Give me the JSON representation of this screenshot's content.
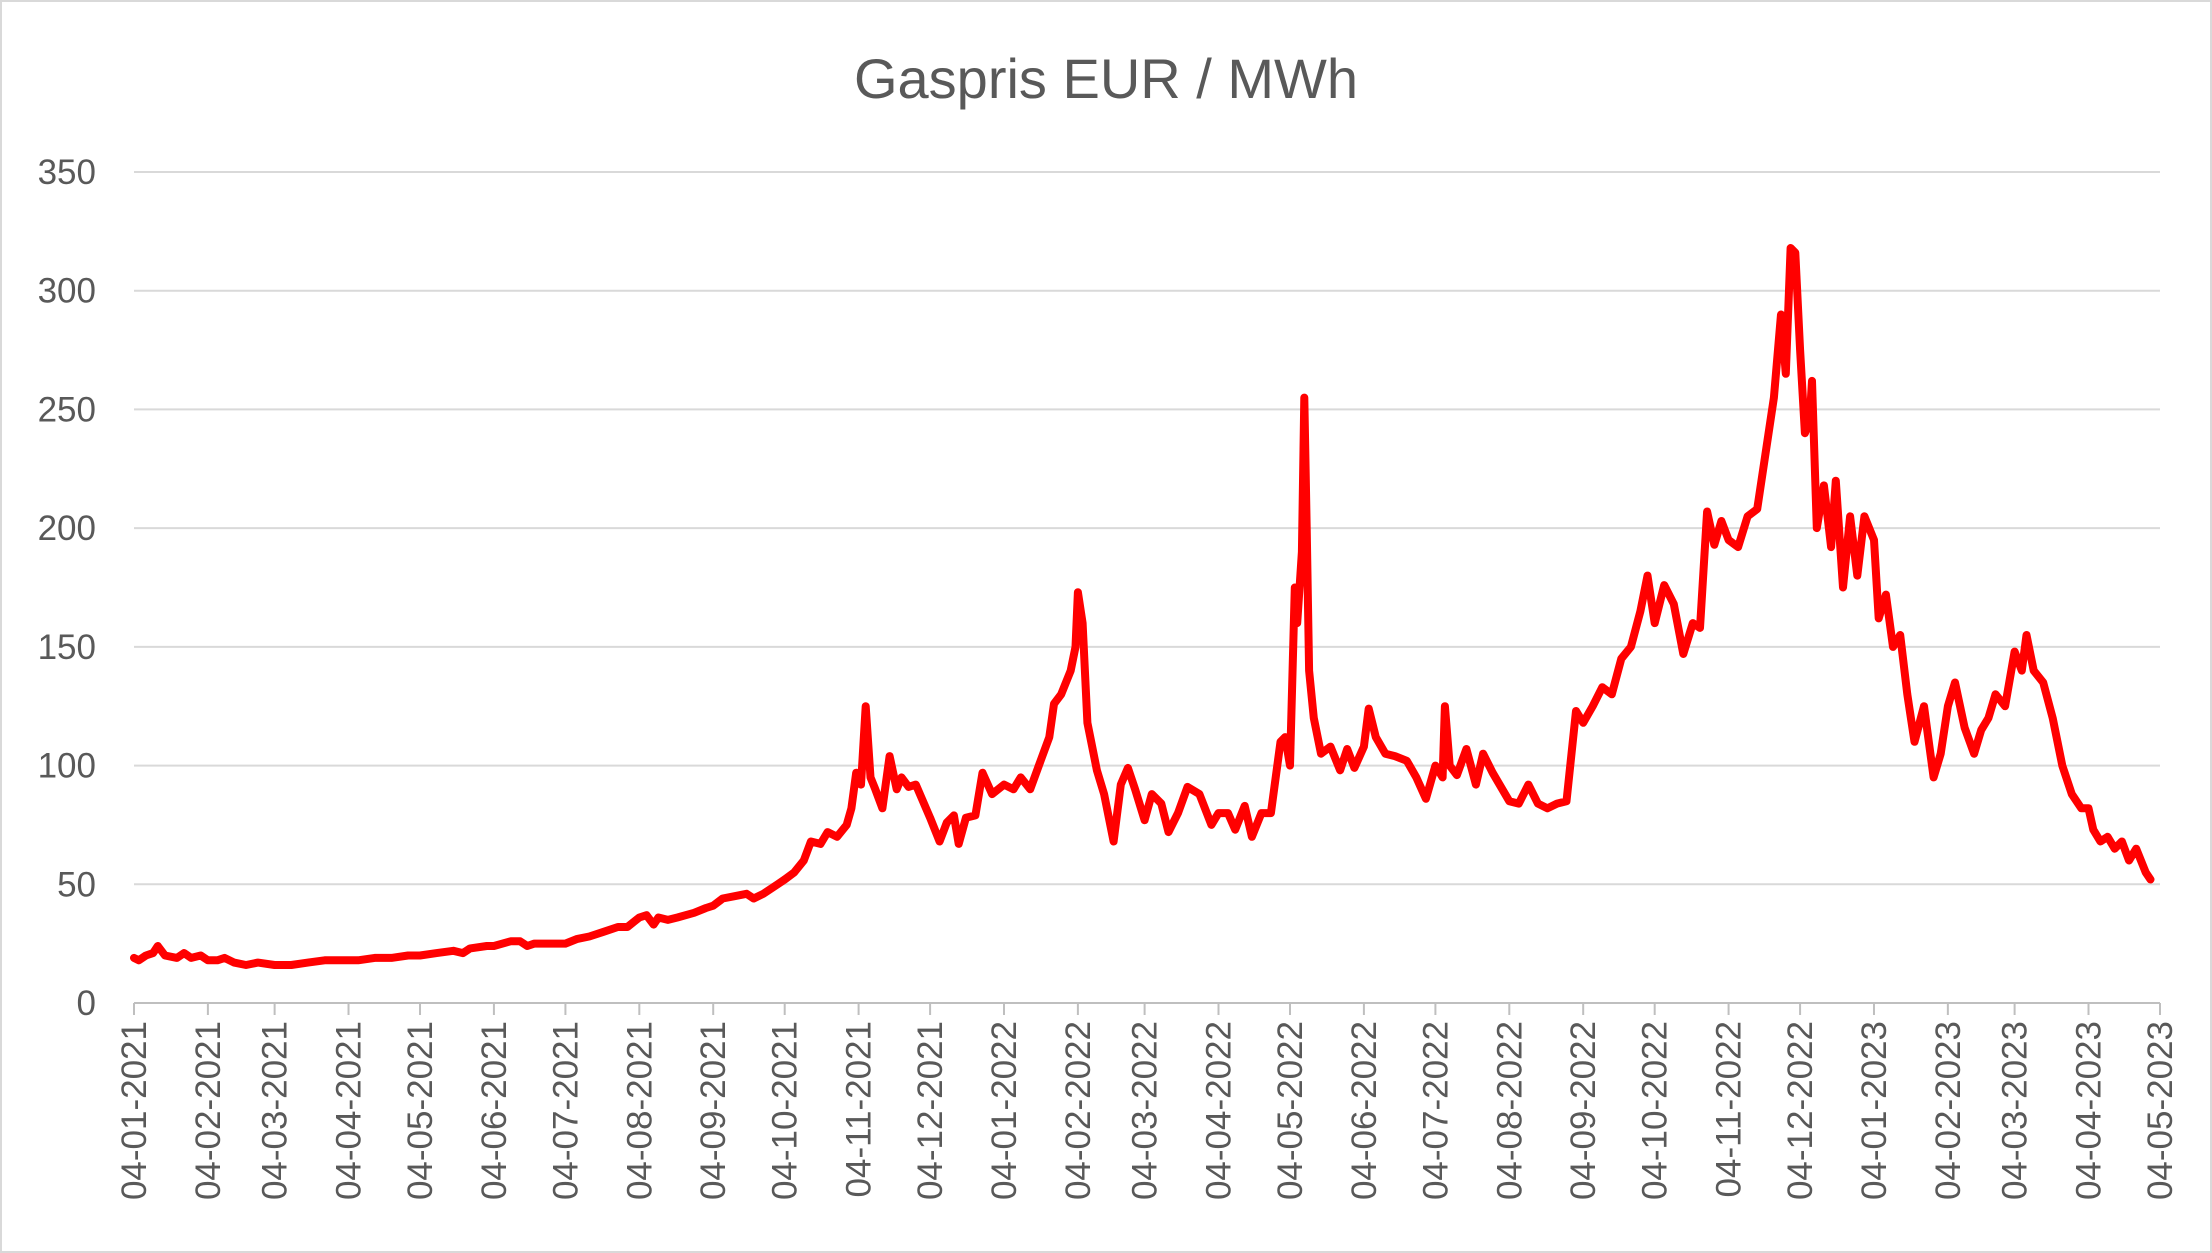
{
  "chart_data": {
    "type": "line",
    "title": "Gaspris EUR / MWh",
    "xlabel": "",
    "ylabel": "",
    "x_start": "04-01-2021",
    "x_end": "04-05-2023",
    "ylim": [
      0,
      350
    ],
    "yticks": [
      0,
      50,
      100,
      150,
      200,
      250,
      300,
      350
    ],
    "grid": true,
    "legend": "none",
    "x_tick_labels": [
      "04-01-2021",
      "04-02-2021",
      "04-03-2021",
      "04-04-2021",
      "04-05-2021",
      "04-06-2021",
      "04-07-2021",
      "04-08-2021",
      "04-09-2021",
      "04-10-2021",
      "04-11-2021",
      "04-12-2021",
      "04-01-2022",
      "04-02-2022",
      "04-03-2022",
      "04-04-2022",
      "04-05-2022",
      "04-06-2022",
      "04-07-2022",
      "04-08-2022",
      "04-09-2022",
      "04-10-2022",
      "04-11-2022",
      "04-12-2022",
      "04-01-2023",
      "04-02-2023",
      "04-03-2023",
      "04-04-2023",
      "04-05-2023"
    ],
    "series": [
      {
        "color": "#ff0000",
        "points": [
          [
            "04-01-2021",
            19
          ],
          [
            "06-01-2021",
            18
          ],
          [
            "09-01-2021",
            20
          ],
          [
            "12-01-2021",
            21
          ],
          [
            "14-01-2021",
            24
          ],
          [
            "17-01-2021",
            20
          ],
          [
            "22-01-2021",
            19
          ],
          [
            "25-01-2021",
            21
          ],
          [
            "28-01-2021",
            19
          ],
          [
            "01-02-2021",
            20
          ],
          [
            "04-02-2021",
            18
          ],
          [
            "08-02-2021",
            18
          ],
          [
            "11-02-2021",
            19
          ],
          [
            "15-02-2021",
            17
          ],
          [
            "20-02-2021",
            16
          ],
          [
            "25-02-2021",
            17
          ],
          [
            "04-03-2021",
            16
          ],
          [
            "11-03-2021",
            16
          ],
          [
            "18-03-2021",
            17
          ],
          [
            "25-03-2021",
            18
          ],
          [
            "01-04-2021",
            18
          ],
          [
            "08-04-2021",
            18
          ],
          [
            "15-04-2021",
            19
          ],
          [
            "22-04-2021",
            19
          ],
          [
            "29-04-2021",
            20
          ],
          [
            "04-05-2021",
            20
          ],
          [
            "11-05-2021",
            21
          ],
          [
            "18-05-2021",
            22
          ],
          [
            "22-05-2021",
            21
          ],
          [
            "25-05-2021",
            23
          ],
          [
            "01-06-2021",
            24
          ],
          [
            "04-06-2021",
            24
          ],
          [
            "11-06-2021",
            26
          ],
          [
            "15-06-2021",
            26
          ],
          [
            "18-06-2021",
            24
          ],
          [
            "21-06-2021",
            25
          ],
          [
            "28-06-2021",
            25
          ],
          [
            "04-07-2021",
            25
          ],
          [
            "09-07-2021",
            27
          ],
          [
            "14-07-2021",
            28
          ],
          [
            "20-07-2021",
            30
          ],
          [
            "26-07-2021",
            32
          ],
          [
            "30-07-2021",
            32
          ],
          [
            "04-08-2021",
            36
          ],
          [
            "07-08-2021",
            37
          ],
          [
            "10-08-2021",
            33
          ],
          [
            "12-08-2021",
            36
          ],
          [
            "16-08-2021",
            35
          ],
          [
            "20-08-2021",
            36
          ],
          [
            "27-08-2021",
            38
          ],
          [
            "01-09-2021",
            40
          ],
          [
            "04-09-2021",
            41
          ],
          [
            "08-09-2021",
            44
          ],
          [
            "13-09-2021",
            45
          ],
          [
            "18-09-2021",
            46
          ],
          [
            "21-09-2021",
            44
          ],
          [
            "25-09-2021",
            46
          ],
          [
            "01-10-2021",
            50
          ],
          [
            "04-10-2021",
            52
          ],
          [
            "08-10-2021",
            55
          ],
          [
            "12-10-2021",
            60
          ],
          [
            "15-10-2021",
            68
          ],
          [
            "19-10-2021",
            67
          ],
          [
            "22-10-2021",
            72
          ],
          [
            "26-10-2021",
            70
          ],
          [
            "30-10-2021",
            75
          ],
          [
            "01-11-2021",
            82
          ],
          [
            "03-11-2021",
            97
          ],
          [
            "05-11-2021",
            92
          ],
          [
            "07-11-2021",
            125
          ],
          [
            "09-11-2021",
            95
          ],
          [
            "11-11-2021",
            90
          ],
          [
            "14-11-2021",
            82
          ],
          [
            "17-11-2021",
            104
          ],
          [
            "20-11-2021",
            90
          ],
          [
            "22-11-2021",
            95
          ],
          [
            "25-11-2021",
            91
          ],
          [
            "28-11-2021",
            92
          ],
          [
            "04-12-2021",
            78
          ],
          [
            "08-12-2021",
            68
          ],
          [
            "11-12-2021",
            76
          ],
          [
            "14-12-2021",
            79
          ],
          [
            "16-12-2021",
            67
          ],
          [
            "19-12-2021",
            78
          ],
          [
            "23-12-2021",
            79
          ],
          [
            "26-12-2021",
            97
          ],
          [
            "30-12-2021",
            88
          ],
          [
            "04-01-2022",
            92
          ],
          [
            "08-01-2022",
            90
          ],
          [
            "11-01-2022",
            95
          ],
          [
            "15-01-2022",
            90
          ],
          [
            "19-01-2022",
            101
          ],
          [
            "23-01-2022",
            112
          ],
          [
            "25-01-2022",
            126
          ],
          [
            "28-01-2022",
            130
          ],
          [
            "01-02-2022",
            140
          ],
          [
            "03-02-2022",
            150
          ],
          [
            "04-02-2022",
            173
          ],
          [
            "06-02-2022",
            160
          ],
          [
            "08-02-2022",
            118
          ],
          [
            "12-02-2022",
            98
          ],
          [
            "15-02-2022",
            88
          ],
          [
            "19-02-2022",
            68
          ],
          [
            "22-02-2022",
            92
          ],
          [
            "25-02-2022",
            99
          ],
          [
            "28-02-2022",
            90
          ],
          [
            "04-03-2022",
            77
          ],
          [
            "07-03-2022",
            88
          ],
          [
            "11-03-2022",
            84
          ],
          [
            "14-03-2022",
            72
          ],
          [
            "18-03-2022",
            80
          ],
          [
            "22-03-2022",
            91
          ],
          [
            "27-03-2022",
            88
          ],
          [
            "01-04-2022",
            75
          ],
          [
            "04-04-2022",
            80
          ],
          [
            "08-04-2022",
            80
          ],
          [
            "11-04-2022",
            73
          ],
          [
            "15-04-2022",
            83
          ],
          [
            "18-04-2022",
            70
          ],
          [
            "22-04-2022",
            80
          ],
          [
            "26-04-2022",
            80
          ],
          [
            "30-04-2022",
            110
          ],
          [
            "02-05-2022",
            112
          ],
          [
            "04-05-2022",
            100
          ],
          [
            "06-05-2022",
            175
          ],
          [
            "07-05-2022",
            160
          ],
          [
            "09-05-2022",
            190
          ],
          [
            "10-05-2022",
            255
          ],
          [
            "11-05-2022",
            200
          ],
          [
            "12-05-2022",
            140
          ],
          [
            "14-05-2022",
            120
          ],
          [
            "17-05-2022",
            105
          ],
          [
            "21-05-2022",
            108
          ],
          [
            "25-05-2022",
            98
          ],
          [
            "28-05-2022",
            107
          ],
          [
            "31-05-2022",
            99
          ],
          [
            "04-06-2022",
            108
          ],
          [
            "06-06-2022",
            124
          ],
          [
            "09-06-2022",
            112
          ],
          [
            "13-06-2022",
            105
          ],
          [
            "17-06-2022",
            104
          ],
          [
            "22-06-2022",
            102
          ],
          [
            "26-06-2022",
            95
          ],
          [
            "30-06-2022",
            86
          ],
          [
            "04-07-2022",
            100
          ],
          [
            "07-07-2022",
            95
          ],
          [
            "08-07-2022",
            125
          ],
          [
            "10-07-2022",
            100
          ],
          [
            "13-07-2022",
            96
          ],
          [
            "17-07-2022",
            107
          ],
          [
            "21-07-2022",
            92
          ],
          [
            "24-07-2022",
            105
          ],
          [
            "28-07-2022",
            97
          ],
          [
            "04-08-2022",
            85
          ],
          [
            "08-08-2022",
            84
          ],
          [
            "12-08-2022",
            92
          ],
          [
            "16-08-2022",
            84
          ],
          [
            "20-08-2022",
            82
          ],
          [
            "24-08-2022",
            84
          ],
          [
            "28-08-2022",
            85
          ],
          [
            "01-09-2022",
            123
          ],
          [
            "04-09-2022",
            118
          ],
          [
            "08-09-2022",
            125
          ],
          [
            "12-09-2022",
            133
          ],
          [
            "16-09-2022",
            130
          ],
          [
            "20-09-2022",
            145
          ],
          [
            "24-09-2022",
            150
          ],
          [
            "28-09-2022",
            165
          ],
          [
            "01-10-2022",
            180
          ],
          [
            "04-10-2022",
            160
          ],
          [
            "08-10-2022",
            176
          ],
          [
            "12-10-2022",
            168
          ],
          [
            "16-10-2022",
            147
          ],
          [
            "20-10-2022",
            160
          ],
          [
            "23-10-2022",
            158
          ],
          [
            "26-10-2022",
            207
          ],
          [
            "29-10-2022",
            193
          ],
          [
            "01-11-2022",
            203
          ],
          [
            "04-11-2022",
            195
          ],
          [
            "08-11-2022",
            192
          ],
          [
            "12-11-2022",
            205
          ],
          [
            "16-11-2022",
            208
          ],
          [
            "19-11-2022",
            228
          ],
          [
            "23-11-2022",
            255
          ],
          [
            "26-11-2022",
            290
          ],
          [
            "28-11-2022",
            265
          ],
          [
            "30-11-2022",
            318
          ],
          [
            "02-12-2022",
            316
          ],
          [
            "04-12-2022",
            275
          ],
          [
            "06-12-2022",
            240
          ],
          [
            "08-12-2022",
            245
          ],
          [
            "09-12-2022",
            262
          ],
          [
            "11-12-2022",
            200
          ],
          [
            "14-12-2022",
            218
          ],
          [
            "17-12-2022",
            192
          ],
          [
            "19-12-2022",
            220
          ],
          [
            "22-12-2022",
            175
          ],
          [
            "25-12-2022",
            205
          ],
          [
            "28-12-2022",
            180
          ],
          [
            "31-12-2022",
            205
          ],
          [
            "04-01-2023",
            195
          ],
          [
            "06-01-2023",
            162
          ],
          [
            "09-01-2023",
            172
          ],
          [
            "12-01-2023",
            150
          ],
          [
            "15-01-2023",
            155
          ],
          [
            "18-01-2023",
            130
          ],
          [
            "21-01-2023",
            110
          ],
          [
            "25-01-2023",
            125
          ],
          [
            "29-01-2023",
            95
          ],
          [
            "01-02-2023",
            105
          ],
          [
            "04-02-2023",
            125
          ],
          [
            "07-02-2023",
            135
          ],
          [
            "11-02-2023",
            116
          ],
          [
            "15-02-2023",
            105
          ],
          [
            "18-02-2023",
            115
          ],
          [
            "21-02-2023",
            120
          ],
          [
            "24-02-2023",
            130
          ],
          [
            "28-02-2023",
            125
          ],
          [
            "04-03-2023",
            148
          ],
          [
            "07-03-2023",
            140
          ],
          [
            "09-03-2023",
            155
          ],
          [
            "12-03-2023",
            140
          ],
          [
            "16-03-2023",
            135
          ],
          [
            "20-03-2023",
            120
          ],
          [
            "24-03-2023",
            100
          ],
          [
            "28-03-2023",
            88
          ],
          [
            "01-04-2023",
            82
          ],
          [
            "04-04-2023",
            82
          ],
          [
            "06-04-2023",
            73
          ],
          [
            "09-04-2023",
            68
          ],
          [
            "12-04-2023",
            70
          ],
          [
            "15-04-2023",
            65
          ],
          [
            "18-04-2023",
            68
          ],
          [
            "21-04-2023",
            60
          ],
          [
            "24-04-2023",
            65
          ],
          [
            "28-04-2023",
            55
          ],
          [
            "30-04-2023",
            52
          ]
        ]
      }
    ]
  }
}
